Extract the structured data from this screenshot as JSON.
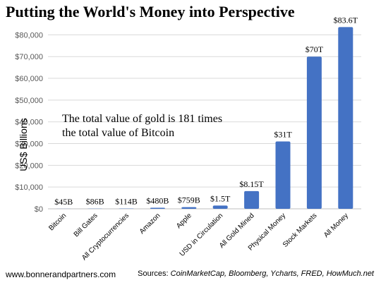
{
  "title": "Putting the World's Money into Perspective",
  "annotation": {
    "line1": "The total value of gold is 181 times",
    "line2": "the total value of Bitcoin"
  },
  "footer": {
    "website": "www.bonnerandpartners.com",
    "sources_label": "Sources: ",
    "sources": "CoinMarketCap, Bloomberg, Ycharts, FRED, HowMuch.net"
  },
  "chart_data": {
    "type": "bar",
    "ylabel": "US$ Billions",
    "ylim": [
      0,
      85000
    ],
    "yticks": [
      0,
      10000,
      20000,
      30000,
      40000,
      50000,
      60000,
      70000,
      80000
    ],
    "ytick_labels": [
      "$0",
      "$10,000",
      "$20,000",
      "$30,000",
      "$40,000",
      "$50,000",
      "$60,000",
      "$70,000",
      "$80,000"
    ],
    "grid": true,
    "bar_color": "#4472c4",
    "categories": [
      "Bitcoin",
      "Bill Gates",
      "All Cryptocurrencies",
      "Amazon",
      "Apple",
      "USD in Circulation",
      "All Gold Mined",
      "Physical Money",
      "Stock Markets",
      "All Money"
    ],
    "values": [
      45,
      86,
      114,
      480,
      759,
      1500,
      8150,
      31000,
      70000,
      83600
    ],
    "data_labels": [
      "$45B",
      "$86B",
      "$114B",
      "$480B",
      "$759B",
      "$1.5T",
      "$8.15T",
      "$31T",
      "$70T",
      "$83.6T"
    ]
  }
}
